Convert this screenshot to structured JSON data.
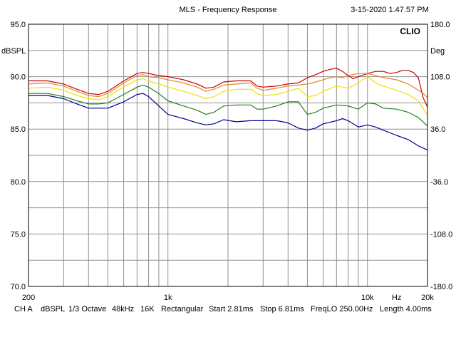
{
  "header": {
    "title": "MLS - Frequency Response",
    "timestamp": "3-15-2020 1.47.57 PM",
    "brand": "CLIO"
  },
  "chart_data": {
    "type": "line",
    "title": "MLS - Frequency Response",
    "xscale": "log",
    "xlim": [
      200,
      20000
    ],
    "ylim": [
      70,
      95
    ],
    "y2lim": [
      -180,
      180
    ],
    "ylabel": "dBSPL",
    "y2label": "Deg",
    "xunit": "Hz",
    "xticks": [
      {
        "value": 200,
        "label": "200"
      },
      {
        "value": 1000,
        "label": "1k"
      },
      {
        "value": 10000,
        "label": "10k"
      },
      {
        "value": 14000,
        "label": "Hz"
      },
      {
        "value": 20000,
        "label": "20k"
      }
    ],
    "yticks": [
      {
        "value": 95,
        "label": "95.0"
      },
      {
        "value": 90,
        "label": "90.0"
      },
      {
        "value": 85,
        "label": "85.0"
      },
      {
        "value": 80,
        "label": "80.0"
      },
      {
        "value": 75,
        "label": "75.0"
      },
      {
        "value": 70,
        "label": "70.0"
      }
    ],
    "y2ticks": [
      {
        "value": 180,
        "label": "180.0"
      },
      {
        "value": 108,
        "label": "108.0"
      },
      {
        "value": 36,
        "label": "36.0"
      },
      {
        "value": -36,
        "label": "-36.0"
      },
      {
        "value": -108,
        "label": "-108.0"
      },
      {
        "value": -180,
        "label": "-180.0"
      }
    ],
    "grid": true,
    "series": [
      {
        "name": "trace-red",
        "color": "#cc0000",
        "points": [
          [
            200,
            89.6
          ],
          [
            250,
            89.6
          ],
          [
            300,
            89.3
          ],
          [
            350,
            88.8
          ],
          [
            400,
            88.4
          ],
          [
            450,
            88.3
          ],
          [
            500,
            88.6
          ],
          [
            600,
            89.6
          ],
          [
            700,
            90.3
          ],
          [
            750,
            90.4
          ],
          [
            800,
            90.3
          ],
          [
            900,
            90.1
          ],
          [
            1000,
            90.0
          ],
          [
            1200,
            89.7
          ],
          [
            1400,
            89.3
          ],
          [
            1550,
            88.9
          ],
          [
            1700,
            89.0
          ],
          [
            1900,
            89.5
          ],
          [
            2200,
            89.6
          ],
          [
            2600,
            89.6
          ],
          [
            2800,
            89.1
          ],
          [
            3000,
            89.0
          ],
          [
            3500,
            89.1
          ],
          [
            4000,
            89.3
          ],
          [
            4500,
            89.4
          ],
          [
            5000,
            89.9
          ],
          [
            5500,
            90.2
          ],
          [
            6000,
            90.5
          ],
          [
            6500,
            90.7
          ],
          [
            7000,
            90.8
          ],
          [
            7500,
            90.5
          ],
          [
            8000,
            90.1
          ],
          [
            8500,
            89.8
          ],
          [
            9000,
            90.0
          ],
          [
            10000,
            90.3
          ],
          [
            11000,
            90.5
          ],
          [
            12000,
            90.5
          ],
          [
            13000,
            90.3
          ],
          [
            14000,
            90.4
          ],
          [
            15000,
            90.6
          ],
          [
            16000,
            90.6
          ],
          [
            17000,
            90.4
          ],
          [
            18000,
            89.9
          ],
          [
            19000,
            88.0
          ],
          [
            20000,
            87.1
          ]
        ]
      },
      {
        "name": "trace-orange",
        "color": "#e08a2c",
        "points": [
          [
            200,
            89.3
          ],
          [
            250,
            89.4
          ],
          [
            300,
            89.1
          ],
          [
            350,
            88.6
          ],
          [
            400,
            88.2
          ],
          [
            450,
            88.1
          ],
          [
            500,
            88.4
          ],
          [
            600,
            89.4
          ],
          [
            700,
            90.1
          ],
          [
            750,
            90.2
          ],
          [
            800,
            90.0
          ],
          [
            900,
            89.9
          ],
          [
            1000,
            89.7
          ],
          [
            1200,
            89.4
          ],
          [
            1400,
            89.0
          ],
          [
            1550,
            88.6
          ],
          [
            1700,
            88.8
          ],
          [
            1900,
            89.2
          ],
          [
            2200,
            89.3
          ],
          [
            2600,
            89.4
          ],
          [
            2800,
            88.9
          ],
          [
            3000,
            88.7
          ],
          [
            3500,
            88.9
          ],
          [
            4000,
            89.1
          ],
          [
            4500,
            89.2
          ],
          [
            5000,
            89.3
          ],
          [
            5500,
            89.5
          ],
          [
            6000,
            89.7
          ],
          [
            6500,
            89.9
          ],
          [
            7000,
            90.0
          ],
          [
            7500,
            89.9
          ],
          [
            8000,
            90.1
          ],
          [
            9000,
            90.3
          ],
          [
            10000,
            90.3
          ],
          [
            11000,
            90.1
          ],
          [
            12000,
            89.9
          ],
          [
            13000,
            89.8
          ],
          [
            14000,
            89.7
          ],
          [
            15000,
            89.5
          ],
          [
            16000,
            89.3
          ],
          [
            17000,
            89.0
          ],
          [
            18000,
            88.7
          ],
          [
            19000,
            88.4
          ],
          [
            20000,
            88.0
          ]
        ]
      },
      {
        "name": "trace-yellow",
        "color": "#f0e000",
        "points": [
          [
            200,
            88.9
          ],
          [
            250,
            89.0
          ],
          [
            300,
            88.7
          ],
          [
            350,
            88.2
          ],
          [
            400,
            87.9
          ],
          [
            450,
            87.8
          ],
          [
            500,
            88.1
          ],
          [
            600,
            89.0
          ],
          [
            700,
            89.7
          ],
          [
            750,
            89.8
          ],
          [
            800,
            89.6
          ],
          [
            900,
            89.3
          ],
          [
            1000,
            89.0
          ],
          [
            1200,
            88.6
          ],
          [
            1400,
            88.2
          ],
          [
            1550,
            87.9
          ],
          [
            1700,
            88.1
          ],
          [
            1900,
            88.6
          ],
          [
            2200,
            88.8
          ],
          [
            2600,
            88.8
          ],
          [
            2800,
            88.4
          ],
          [
            3000,
            88.2
          ],
          [
            3500,
            88.3
          ],
          [
            4000,
            88.6
          ],
          [
            4500,
            88.9
          ],
          [
            5000,
            88.1
          ],
          [
            5500,
            88.2
          ],
          [
            6000,
            88.6
          ],
          [
            7000,
            89.1
          ],
          [
            8000,
            88.9
          ],
          [
            9000,
            89.4
          ],
          [
            10000,
            90.0
          ],
          [
            11000,
            89.4
          ],
          [
            12000,
            89.1
          ],
          [
            14000,
            88.7
          ],
          [
            16000,
            88.3
          ],
          [
            18000,
            87.7
          ],
          [
            20000,
            86.3
          ]
        ]
      },
      {
        "name": "trace-green",
        "color": "#208020",
        "points": [
          [
            200,
            88.4
          ],
          [
            250,
            88.4
          ],
          [
            300,
            88.1
          ],
          [
            350,
            87.7
          ],
          [
            400,
            87.4
          ],
          [
            450,
            87.4
          ],
          [
            500,
            87.5
          ],
          [
            600,
            88.3
          ],
          [
            700,
            89.0
          ],
          [
            750,
            89.2
          ],
          [
            800,
            89.0
          ],
          [
            900,
            88.4
          ],
          [
            1000,
            87.7
          ],
          [
            1200,
            87.2
          ],
          [
            1400,
            86.8
          ],
          [
            1550,
            86.4
          ],
          [
            1700,
            86.6
          ],
          [
            1900,
            87.2
          ],
          [
            2200,
            87.3
          ],
          [
            2600,
            87.3
          ],
          [
            2800,
            86.9
          ],
          [
            3000,
            86.9
          ],
          [
            3500,
            87.2
          ],
          [
            4000,
            87.6
          ],
          [
            4500,
            87.6
          ],
          [
            5000,
            86.4
          ],
          [
            5500,
            86.6
          ],
          [
            6000,
            87.0
          ],
          [
            7000,
            87.3
          ],
          [
            8000,
            87.2
          ],
          [
            9000,
            86.9
          ],
          [
            10000,
            87.5
          ],
          [
            11000,
            87.4
          ],
          [
            12000,
            87.0
          ],
          [
            14000,
            86.9
          ],
          [
            16000,
            86.6
          ],
          [
            18000,
            86.1
          ],
          [
            20000,
            85.3
          ]
        ]
      },
      {
        "name": "trace-blue",
        "color": "#000090",
        "points": [
          [
            200,
            88.2
          ],
          [
            250,
            88.2
          ],
          [
            300,
            87.9
          ],
          [
            350,
            87.4
          ],
          [
            400,
            87.0
          ],
          [
            450,
            87.0
          ],
          [
            500,
            87.0
          ],
          [
            600,
            87.6
          ],
          [
            700,
            88.3
          ],
          [
            750,
            88.4
          ],
          [
            800,
            88.1
          ],
          [
            900,
            87.2
          ],
          [
            1000,
            86.4
          ],
          [
            1200,
            86.0
          ],
          [
            1400,
            85.6
          ],
          [
            1550,
            85.4
          ],
          [
            1700,
            85.5
          ],
          [
            1900,
            85.9
          ],
          [
            2200,
            85.7
          ],
          [
            2600,
            85.8
          ],
          [
            2800,
            85.8
          ],
          [
            3000,
            85.8
          ],
          [
            3500,
            85.8
          ],
          [
            4000,
            85.6
          ],
          [
            4500,
            85.1
          ],
          [
            5000,
            84.9
          ],
          [
            5500,
            85.1
          ],
          [
            6000,
            85.5
          ],
          [
            7000,
            85.8
          ],
          [
            7500,
            86.0
          ],
          [
            8000,
            85.8
          ],
          [
            9000,
            85.2
          ],
          [
            10000,
            85.4
          ],
          [
            11000,
            85.2
          ],
          [
            12000,
            84.9
          ],
          [
            14000,
            84.4
          ],
          [
            16000,
            84.0
          ],
          [
            18000,
            83.4
          ],
          [
            20000,
            83.0
          ]
        ]
      }
    ]
  },
  "status_bar": {
    "channel": "CH A",
    "unit": "dBSPL",
    "smoothing": "1/3 Octave",
    "sample_rate": "48kHz",
    "size": "16K",
    "window": "Rectangular",
    "start": "Start 2.81ms",
    "stop": "Stop 6.81ms",
    "freq_lo": "FreqLO 250.00Hz",
    "length": "Length 4.00ms"
  }
}
